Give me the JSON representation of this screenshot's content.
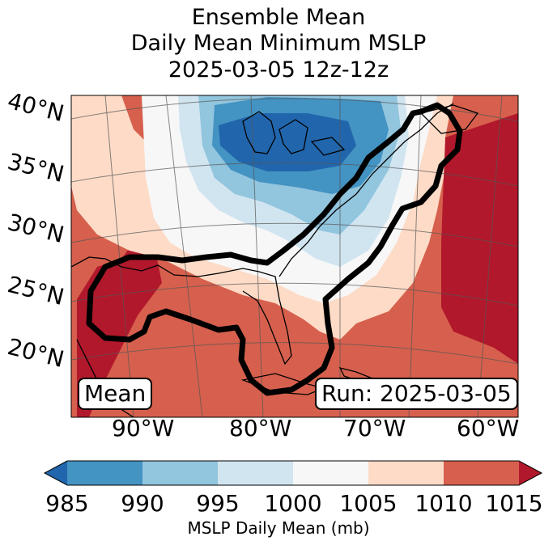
{
  "title": {
    "line1": "Ensemble Mean",
    "line2": "Daily Mean Minimum MSLP",
    "line3": "2025-03-05 12z-12z"
  },
  "map": {
    "lat_labels": [
      "40°N",
      "35°N",
      "30°N",
      "25°N",
      "20°N"
    ],
    "lon_labels": [
      "90°W",
      "80°W",
      "70°W",
      "60°W"
    ],
    "left_box": "Mean",
    "right_box": "Run: 2025-03-05",
    "contour_color": "#000000"
  },
  "colorbar": {
    "levels": [
      "985",
      "990",
      "995",
      "1000",
      "1005",
      "1010",
      "1015"
    ],
    "colors": [
      "#2166ac",
      "#4393c3",
      "#92c5de",
      "#d1e5f0",
      "#f7f7f7",
      "#fddbc7",
      "#d6604d",
      "#b2182b"
    ],
    "label": "MSLP Daily Mean (mb)"
  }
}
